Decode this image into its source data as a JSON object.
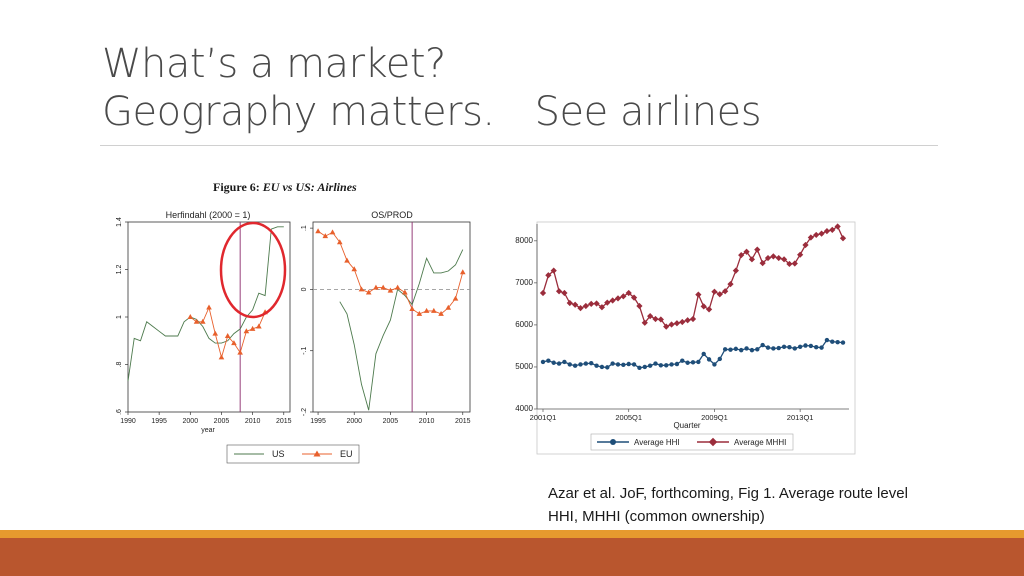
{
  "slide": {
    "title_line1": "What’s a market?",
    "title_line2_a": "Geography matters.",
    "title_line2_b": "See airlines",
    "citation": "Azar et al. JoF, forthcoming, Fig 1.  Average route level HHI, MHHI (common ownership)",
    "colors": {
      "title": "#4a4a4a",
      "band_top": "#e69a2e",
      "band_bottom": "#b9562e",
      "circle": "#e0282e"
    }
  },
  "figure": {
    "label": "Figure 6:",
    "caption": "EU vs US: Airlines"
  },
  "chart_data": [
    {
      "type": "line",
      "title": "Herfindahl (2000 = 1)",
      "xlabel": "year",
      "x_ticks": [
        "1990",
        "1995",
        "2000",
        "2005",
        "2010",
        "2015"
      ],
      "y_ticks": [
        ".6",
        ".8",
        "1",
        "1.2",
        "1.4"
      ],
      "xlim": [
        1990,
        2016
      ],
      "ylim": [
        0.6,
        1.4
      ],
      "vline": 2008,
      "series": [
        {
          "name": "US",
          "color": "#4d7a4d",
          "x": [
            1990,
            1991,
            1992,
            1993,
            1994,
            1995,
            1996,
            1997,
            1998,
            1999,
            2000,
            2001,
            2002,
            2003,
            2004,
            2005,
            2006,
            2007,
            2008,
            2009,
            2010,
            2011,
            2012,
            2013,
            2014,
            2015
          ],
          "y": [
            0.73,
            0.91,
            0.9,
            0.98,
            0.96,
            0.94,
            0.92,
            0.92,
            0.92,
            0.98,
            1.0,
            0.99,
            0.96,
            0.91,
            0.89,
            0.89,
            0.9,
            0.93,
            0.95,
            1.0,
            1.03,
            1.1,
            1.09,
            1.37,
            1.38,
            1.38
          ]
        },
        {
          "name": "EU",
          "color": "#e8602c",
          "x": [
            2000,
            2001,
            2002,
            2003,
            2004,
            2005,
            2006,
            2007,
            2008,
            2009,
            2010,
            2011,
            2012
          ],
          "y": [
            1.0,
            0.98,
            0.98,
            1.04,
            0.93,
            0.83,
            0.92,
            0.89,
            0.85,
            0.94,
            0.95,
            0.96,
            1.02
          ]
        }
      ]
    },
    {
      "type": "line",
      "title": "OS/PROD",
      "xlabel": "",
      "x_ticks": [
        "1995",
        "2000",
        "2005",
        "2010",
        "2015"
      ],
      "y_ticks": [
        "-.2",
        "-.1",
        "0",
        ".1"
      ],
      "xlim": [
        1994.3,
        2016
      ],
      "ylim": [
        -0.2,
        0.11
      ],
      "vline": 2008,
      "hline": 0,
      "series": [
        {
          "name": "US",
          "color": "#4d7a4d",
          "x": [
            1998,
            1999,
            2000,
            2001,
            2002,
            2003,
            2004,
            2005,
            2006,
            2007,
            2008,
            2009,
            2010,
            2011,
            2012,
            2013,
            2014,
            2015
          ],
          "y": [
            -0.02,
            -0.04,
            -0.09,
            -0.155,
            -0.197,
            -0.105,
            -0.075,
            -0.05,
            0.0,
            -0.01,
            -0.025,
            0.01,
            0.051,
            0.027,
            0.027,
            0.03,
            0.04,
            0.065
          ]
        },
        {
          "name": "EU",
          "color": "#e8602c",
          "x": [
            1995,
            1996,
            1997,
            1998,
            1999,
            2000,
            2001,
            2002,
            2003,
            2004,
            2005,
            2006,
            2007,
            2008,
            2009,
            2010,
            2011,
            2012,
            2013,
            2014,
            2015
          ],
          "y": [
            0.095,
            0.087,
            0.093,
            0.077,
            0.047,
            0.033,
            0.0,
            -0.005,
            0.003,
            0.003,
            -0.002,
            0.003,
            -0.005,
            -0.032,
            -0.04,
            -0.035,
            -0.035,
            -0.04,
            -0.03,
            -0.015,
            0.028
          ]
        }
      ]
    },
    {
      "type": "line",
      "title": "",
      "xlabel": "Quarter",
      "x_ticks": [
        "2001Q1",
        "2005Q1",
        "2009Q1",
        "2013Q1"
      ],
      "y_ticks": [
        "4000",
        "5000",
        "6000",
        "7000",
        "8000"
      ],
      "xlim": [
        0,
        56
      ],
      "ylim": [
        4000,
        8400
      ],
      "series": [
        {
          "name": "Average HHI",
          "color": "#1f4e79",
          "y": [
            5120,
            5150,
            5100,
            5080,
            5120,
            5060,
            5030,
            5060,
            5080,
            5090,
            5030,
            5000,
            4990,
            5080,
            5060,
            5050,
            5070,
            5060,
            4980,
            5000,
            5030,
            5080,
            5040,
            5040,
            5060,
            5070,
            5150,
            5100,
            5110,
            5120,
            5310,
            5180,
            5060,
            5190,
            5420,
            5410,
            5430,
            5400,
            5440,
            5400,
            5420,
            5520,
            5460,
            5440,
            5450,
            5480,
            5470,
            5440,
            5480,
            5510,
            5500,
            5470,
            5460,
            5640,
            5600,
            5590,
            5580
          ]
        },
        {
          "name": "Average MHHI",
          "color": "#9b2d3c",
          "y": [
            6760,
            7180,
            7290,
            6800,
            6760,
            6520,
            6480,
            6400,
            6450,
            6500,
            6510,
            6420,
            6530,
            6580,
            6630,
            6680,
            6760,
            6650,
            6450,
            6050,
            6210,
            6140,
            6130,
            5960,
            6010,
            6040,
            6070,
            6110,
            6140,
            6720,
            6440,
            6370,
            6790,
            6730,
            6800,
            6970,
            7290,
            7660,
            7740,
            7560,
            7790,
            7470,
            7590,
            7630,
            7590,
            7560,
            7450,
            7460,
            7670,
            7900,
            8080,
            8140,
            8170,
            8230,
            8260,
            8340,
            8060
          ]
        }
      ]
    }
  ],
  "legend_left": [
    "US",
    "EU"
  ],
  "legend_right": [
    "Average HHI",
    "Average MHHI"
  ]
}
